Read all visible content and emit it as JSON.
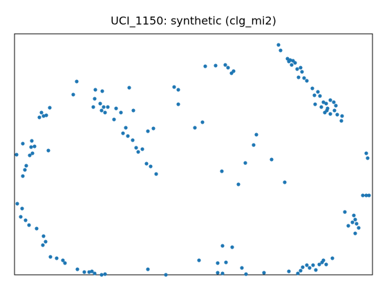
{
  "chart_data": {
    "type": "scatter",
    "title": "UCI_1150: synthetic (clg_mi2)",
    "color": "#1f77b4",
    "xlim": [
      0,
      518
    ],
    "ylim": [
      0,
      349
    ],
    "x": [
      382,
      385,
      395,
      399,
      403,
      406,
      397,
      401,
      414,
      409,
      416,
      411,
      419,
      423,
      431,
      439,
      434,
      442,
      447,
      451,
      457,
      462,
      465,
      435,
      444,
      452,
      457,
      467,
      474,
      463,
      449,
      473,
      453,
      276,
      291,
      305,
      309,
      317,
      314,
      231,
      237,
      237,
      272,
      261,
      90,
      85,
      117,
      127,
      116,
      124,
      129,
      135,
      126,
      114,
      131,
      147,
      144,
      154,
      166,
      172,
      157,
      164,
      171,
      161,
      193,
      201,
      179,
      185,
      176,
      191,
      197,
      205,
      350,
      346,
      334,
      300,
      324,
      372,
      391,
      51,
      39,
      36,
      42,
      46,
      3,
      12,
      25,
      24,
      29,
      22,
      26,
      49,
      17,
      15,
      12,
      4,
      11,
      9,
      16,
      21,
      32,
      42,
      45,
      41,
      52,
      61,
      70,
      73,
      91,
      101,
      108,
      112,
      116,
      126,
      131,
      193,
      219,
      267,
      301,
      315,
      294,
      306,
      329,
      335,
      294,
      301,
      361,
      397,
      410,
      417,
      423,
      427,
      432,
      441,
      447,
      451,
      460,
      445,
      436,
      414,
      509,
      511,
      504,
      509,
      513,
      478,
      491,
      493,
      489,
      495,
      483,
      498,
      493
    ],
    "y": [
      333,
      325,
      313,
      311,
      310,
      307,
      309,
      304,
      300,
      298,
      294,
      286,
      285,
      281,
      270,
      265,
      260,
      259,
      250,
      248,
      253,
      250,
      245,
      247,
      243,
      238,
      233,
      232,
      230,
      238,
      235,
      223,
      241,
      302,
      303,
      304,
      300,
      295,
      292,
      272,
      268,
      247,
      221,
      213,
      280,
      261,
      268,
      266,
      255,
      248,
      243,
      243,
      238,
      243,
      235,
      241,
      225,
      235,
      271,
      238,
      205,
      201,
      195,
      213,
      208,
      212,
      178,
      182,
      184,
      161,
      157,
      146,
      203,
      188,
      162,
      150,
      131,
      167,
      134,
      242,
      235,
      228,
      230,
      231,
      174,
      190,
      194,
      185,
      186,
      173,
      176,
      180,
      158,
      152,
      143,
      103,
      96,
      84,
      79,
      72,
      67,
      56,
      48,
      43,
      26,
      24,
      21,
      17,
      8,
      4,
      4,
      5,
      2,
      0,
      1,
      8,
      0,
      21,
      42,
      40,
      17,
      18,
      10,
      1,
      3,
      2,
      3,
      5,
      2,
      11,
      14,
      10,
      14,
      15,
      21,
      15,
      24,
      18,
      7,
      6,
      176,
      169,
      115,
      115,
      115,
      91,
      86,
      80,
      76,
      74,
      71,
      68,
      60
    ]
  }
}
